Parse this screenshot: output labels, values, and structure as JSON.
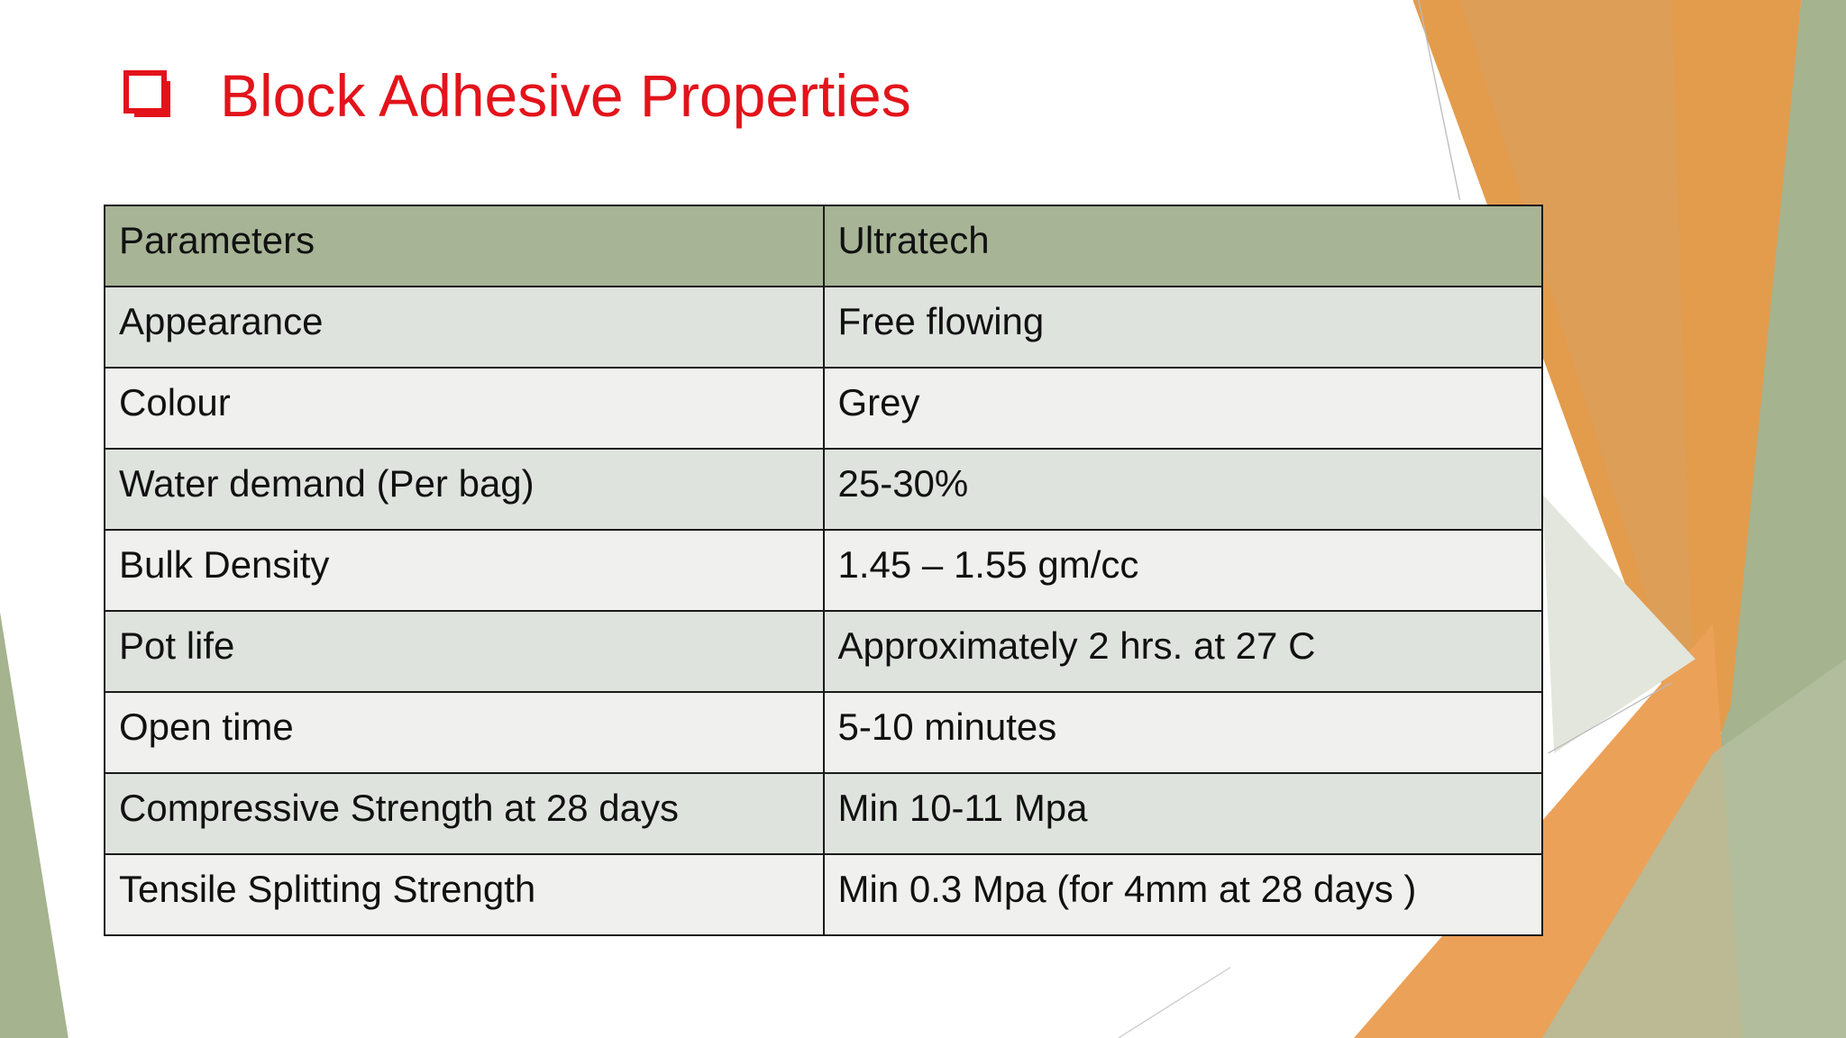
{
  "header": {
    "title": "Block Adhesive Properties"
  },
  "table": {
    "columns": [
      "Parameters",
      "Ultratech"
    ],
    "rows": [
      [
        "Appearance",
        "Free flowing"
      ],
      [
        "Colour",
        "Grey"
      ],
      [
        "Water demand (Per bag)",
        "25-30%"
      ],
      [
        "Bulk Density",
        "1.45 – 1.55 gm/cc"
      ],
      [
        "Pot life",
        "Approximately 2 hrs. at 27 C"
      ],
      [
        "Open time",
        "5-10 minutes"
      ],
      [
        "Compressive Strength at 28 days",
        "Min 10-11 Mpa"
      ],
      [
        "Tensile Splitting Strength",
        "Min 0.3 Mpa (for 4mm at 28 days )"
      ]
    ]
  }
}
